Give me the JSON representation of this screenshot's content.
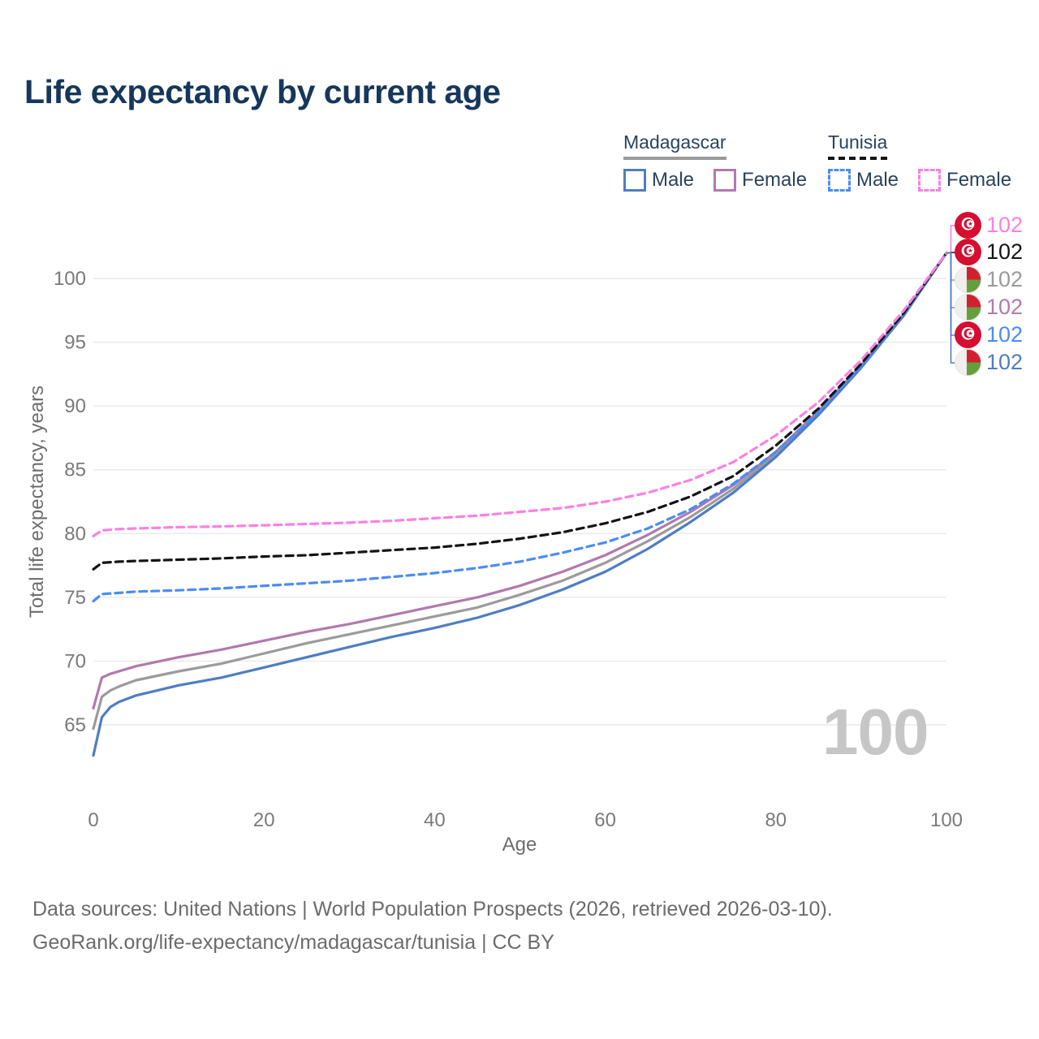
{
  "header": {
    "title": "Life expectancy by current age"
  },
  "legend": {
    "groups": [
      {
        "label": "Madagascar",
        "line_style": "solid",
        "line_color": "#9b9b9b",
        "items": [
          {
            "label": "Male",
            "color": "#4f7dc2",
            "dashed": false
          },
          {
            "label": "Female",
            "color": "#b279ae",
            "dashed": false
          }
        ]
      },
      {
        "label": "Tunisia",
        "line_style": "dashed",
        "line_color": "#141414",
        "items": [
          {
            "label": "Male",
            "color": "#4b8cf5",
            "dashed": true
          },
          {
            "label": "Female",
            "color": "#fb80e2",
            "dashed": true
          }
        ]
      }
    ]
  },
  "chart_data": {
    "type": "line",
    "title": "Life expectancy by current age",
    "xlabel": "Age",
    "ylabel": "Total life expectancy, years",
    "x_ticks": [
      0,
      20,
      40,
      60,
      80,
      100
    ],
    "y_ticks": [
      65,
      70,
      75,
      80,
      85,
      90,
      95,
      100
    ],
    "xlim": [
      0,
      100
    ],
    "ylim": [
      62,
      103
    ],
    "grid": "horizontal-only",
    "legend_position": "top-right",
    "watermark": "100",
    "ages": [
      0,
      1,
      2,
      3,
      5,
      10,
      15,
      20,
      25,
      30,
      35,
      40,
      45,
      50,
      55,
      60,
      65,
      70,
      75,
      80,
      85,
      90,
      95,
      100
    ],
    "series": [
      {
        "name": "Madagascar",
        "gender": "Total",
        "color": "#9b9b9b",
        "dashed": false,
        "values": [
          64.7,
          67.2,
          67.7,
          68.0,
          68.5,
          69.2,
          69.8,
          70.6,
          71.4,
          72.1,
          72.8,
          73.5,
          74.2,
          75.2,
          76.3,
          77.7,
          79.4,
          81.3,
          83.5,
          86.2,
          89.5,
          93.1,
          97.1,
          102
        ]
      },
      {
        "name": "Madagascar Female",
        "gender": "Female",
        "color": "#b279ae",
        "dashed": false,
        "values": [
          66.3,
          68.7,
          69.0,
          69.2,
          69.6,
          70.3,
          70.9,
          71.6,
          72.3,
          72.9,
          73.6,
          74.3,
          75.0,
          75.9,
          77.0,
          78.3,
          79.9,
          81.7,
          83.8,
          86.4,
          89.6,
          93.2,
          97.2,
          102
        ]
      },
      {
        "name": "Madagascar Male",
        "gender": "Male",
        "color": "#4f7dc2",
        "dashed": false,
        "values": [
          62.6,
          65.6,
          66.4,
          66.8,
          67.3,
          68.1,
          68.7,
          69.5,
          70.3,
          71.1,
          71.9,
          72.6,
          73.4,
          74.4,
          75.6,
          77.0,
          78.8,
          80.9,
          83.2,
          86.0,
          89.3,
          93.0,
          97.1,
          102
        ]
      },
      {
        "name": "Tunisia Male",
        "gender": "Male",
        "color": "#4b8cf5",
        "dashed": true,
        "values": [
          74.7,
          75.25,
          75.3,
          75.35,
          75.45,
          75.55,
          75.7,
          75.9,
          76.1,
          76.3,
          76.6,
          76.9,
          77.3,
          77.8,
          78.5,
          79.3,
          80.4,
          81.9,
          83.9,
          86.4,
          89.5,
          93.1,
          97.2,
          102
        ]
      },
      {
        "name": "Tunisia",
        "gender": "Total",
        "color": "#141414",
        "dashed": true,
        "values": [
          77.2,
          77.7,
          77.75,
          77.8,
          77.85,
          77.95,
          78.05,
          78.2,
          78.3,
          78.5,
          78.7,
          78.9,
          79.2,
          79.6,
          80.1,
          80.8,
          81.7,
          82.9,
          84.5,
          86.9,
          89.8,
          93.3,
          97.3,
          102
        ]
      },
      {
        "name": "Tunisia Female",
        "gender": "Female",
        "color": "#fb80e2",
        "dashed": true,
        "values": [
          79.8,
          80.25,
          80.3,
          80.35,
          80.4,
          80.5,
          80.55,
          80.65,
          80.75,
          80.85,
          81.0,
          81.2,
          81.4,
          81.7,
          82.0,
          82.5,
          83.2,
          84.2,
          85.6,
          87.7,
          90.3,
          93.6,
          97.5,
          102
        ]
      }
    ],
    "end_labels": [
      {
        "country": "Tunisia",
        "flag": "tunisia",
        "value": "102",
        "color": "#fb80e2"
      },
      {
        "country": "Tunisia",
        "flag": "tunisia",
        "value": "102",
        "color": "#141414"
      },
      {
        "country": "Madagascar",
        "flag": "madagascar",
        "value": "102",
        "color": "#9b9b9b"
      },
      {
        "country": "Madagascar",
        "flag": "madagascar",
        "value": "102",
        "color": "#b279ae"
      },
      {
        "country": "Tunisia",
        "flag": "tunisia",
        "value": "102",
        "color": "#4b8cf5"
      },
      {
        "country": "Madagascar",
        "flag": "madagascar",
        "value": "102",
        "color": "#4f7dc2"
      }
    ]
  },
  "footer": {
    "line1": "Data sources: United Nations | World Population Prospects (2026, retrieved 2026-03-10).",
    "line2": "GeoRank.org/life-expectancy/madagascar/tunisia | CC BY"
  }
}
